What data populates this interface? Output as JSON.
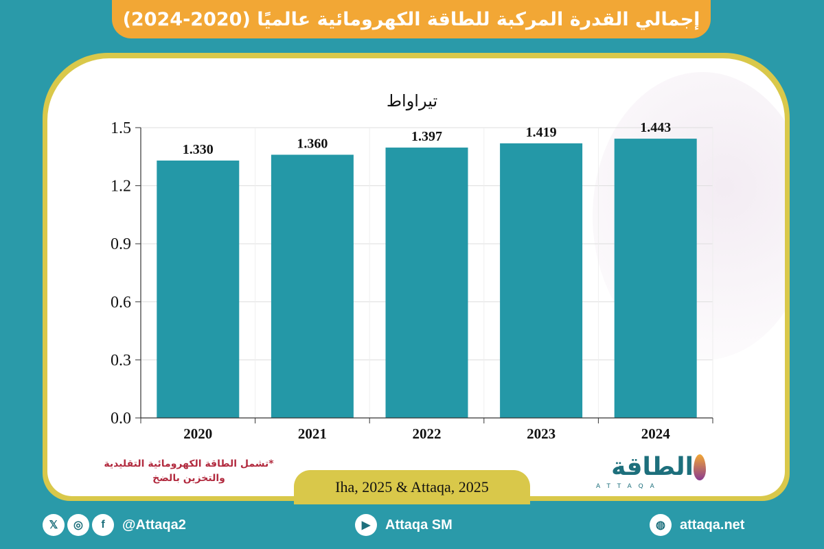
{
  "title": "إجمالي القدرة المركبة للطاقة الكهرومائية عالميًا (2020-2024)",
  "note_line1": "*تشمل الطاقة الكهرومائية التقليدية",
  "note_line2": "والتخزين بالضخ",
  "source": "Iha, 2025 & Attaqa, 2025",
  "logo": {
    "ar": "الطاقة",
    "en": "ATTAQA"
  },
  "footer": {
    "social_handle": "@Attaqa2",
    "youtube": "Attaqa SM",
    "website": "attaqa.net",
    "icons": [
      "x-icon",
      "instagram-icon",
      "facebook-icon",
      "youtube-icon",
      "globe-icon"
    ]
  },
  "colors": {
    "background": "#2a9aa9",
    "bar": "#2498a7",
    "title_bar": "#f2a735",
    "frame": "#d9c84a",
    "note": "#b22b3f"
  },
  "chart_data": {
    "type": "bar",
    "categories": [
      "2020",
      "2021",
      "2022",
      "2023",
      "2024"
    ],
    "values": [
      1.33,
      1.36,
      1.397,
      1.419,
      1.443
    ],
    "data_labels": [
      "1.330",
      "1.360",
      "1.397",
      "1.419",
      "1.443"
    ],
    "ylabel": "تيراواط",
    "ylim": [
      0,
      1.5
    ],
    "yticks": [
      "0.0",
      "0.3",
      "0.6",
      "0.9",
      "1.2",
      "1.5"
    ],
    "grid": true
  }
}
